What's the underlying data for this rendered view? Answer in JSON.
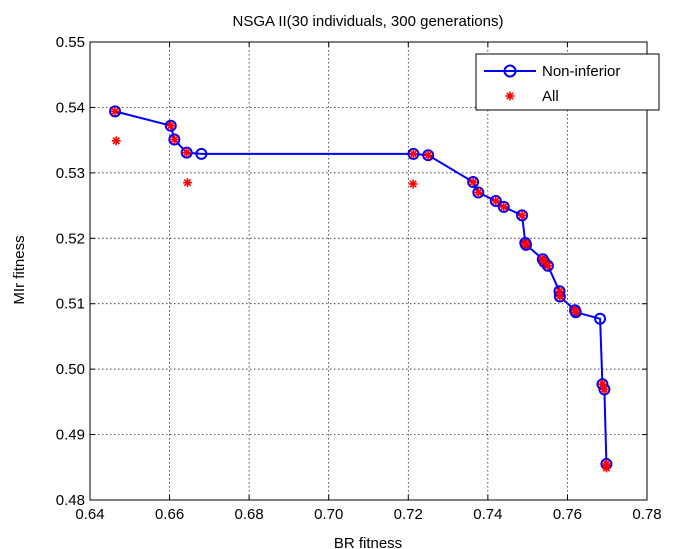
{
  "chart_data": {
    "type": "scatter",
    "title": "NSGA II(30 individuals, 300 generations)",
    "xlabel": "BR fitness",
    "ylabel": "MIr fitness",
    "xlim": [
      0.64,
      0.78
    ],
    "ylim": [
      0.48,
      0.55
    ],
    "xticks": [
      "0.64",
      "0.66",
      "0.68",
      "0.70",
      "0.72",
      "0.74",
      "0.76",
      "0.78"
    ],
    "yticks": [
      "0.48",
      "0.49",
      "0.50",
      "0.51",
      "0.52",
      "0.53",
      "0.54",
      "0.55"
    ],
    "grid": true,
    "legend_position": "top-right",
    "series": [
      {
        "name": "Non-inferior",
        "style": "line-with-circle-markers",
        "color": "#0000ff",
        "points": [
          [
            0.6463,
            0.5394
          ],
          [
            0.6603,
            0.5372
          ],
          [
            0.6612,
            0.5351
          ],
          [
            0.6643,
            0.5331
          ],
          [
            0.668,
            0.5329
          ],
          [
            0.7213,
            0.5329
          ],
          [
            0.725,
            0.5327
          ],
          [
            0.7363,
            0.5286
          ],
          [
            0.7376,
            0.527
          ],
          [
            0.742,
            0.5257
          ],
          [
            0.744,
            0.5248
          ],
          [
            0.7486,
            0.5235
          ],
          [
            0.7494,
            0.5193
          ],
          [
            0.7496,
            0.519
          ],
          [
            0.7538,
            0.5168
          ],
          [
            0.7542,
            0.5164
          ],
          [
            0.7551,
            0.5158
          ],
          [
            0.758,
            0.5119
          ],
          [
            0.7581,
            0.5111
          ],
          [
            0.7619,
            0.509
          ],
          [
            0.7621,
            0.5087
          ],
          [
            0.7682,
            0.5077
          ],
          [
            0.7688,
            0.4977
          ],
          [
            0.7693,
            0.4969
          ],
          [
            0.7698,
            0.4855
          ]
        ]
      },
      {
        "name": "All",
        "style": "red-star-markers",
        "color": "#ff0000",
        "points": [
          [
            0.6463,
            0.5394
          ],
          [
            0.6603,
            0.5372
          ],
          [
            0.6612,
            0.5351
          ],
          [
            0.6643,
            0.5331
          ],
          [
            0.7213,
            0.5329
          ],
          [
            0.725,
            0.5327
          ],
          [
            0.7363,
            0.5286
          ],
          [
            0.7376,
            0.527
          ],
          [
            0.742,
            0.5257
          ],
          [
            0.744,
            0.5248
          ],
          [
            0.7486,
            0.5235
          ],
          [
            0.7494,
            0.5193
          ],
          [
            0.7496,
            0.519
          ],
          [
            0.7538,
            0.5168
          ],
          [
            0.7542,
            0.5164
          ],
          [
            0.7551,
            0.5158
          ],
          [
            0.758,
            0.5119
          ],
          [
            0.7581,
            0.5111
          ],
          [
            0.7619,
            0.509
          ],
          [
            0.7621,
            0.5087
          ],
          [
            0.7688,
            0.4977
          ],
          [
            0.7693,
            0.4969
          ],
          [
            0.7698,
            0.4855
          ],
          [
            0.7698,
            0.4849
          ],
          [
            0.6466,
            0.5349
          ],
          [
            0.6645,
            0.5285
          ],
          [
            0.7212,
            0.5283
          ]
        ]
      }
    ]
  }
}
